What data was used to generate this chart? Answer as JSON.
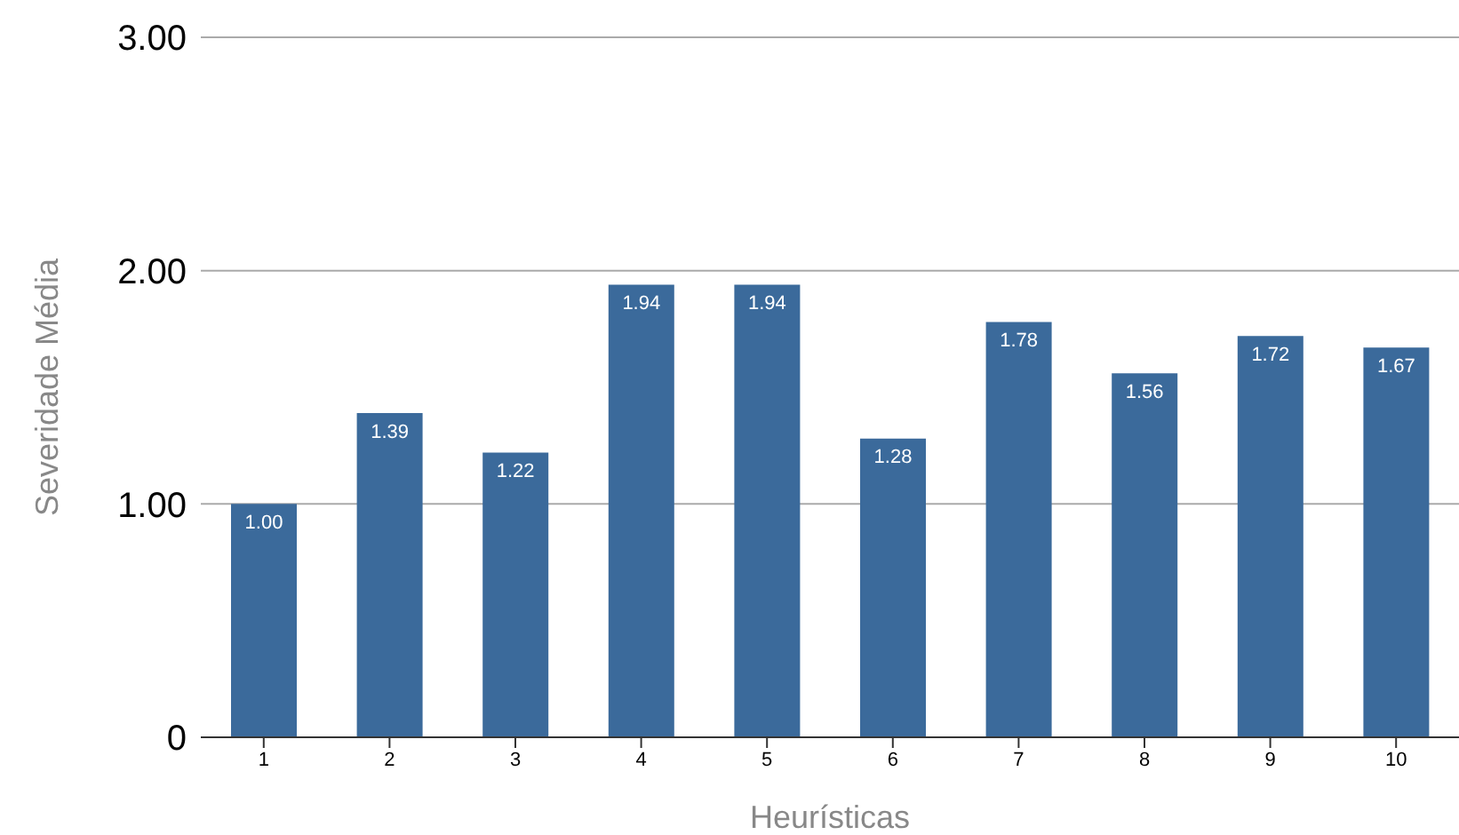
{
  "chart_data": {
    "type": "bar",
    "xlabel": "Heurísticas",
    "ylabel": "Severidade Média",
    "categories": [
      "1",
      "2",
      "3",
      "4",
      "5",
      "6",
      "7",
      "8",
      "9",
      "10"
    ],
    "values": [
      1.0,
      1.39,
      1.22,
      1.94,
      1.94,
      1.28,
      1.78,
      1.56,
      1.72,
      1.67
    ],
    "value_labels": [
      "1.00",
      "1.39",
      "1.22",
      "1.94",
      "1.94",
      "1.28",
      "1.78",
      "1.56",
      "1.72",
      "1.67"
    ],
    "color": "#3b6a9b",
    "ylim": [
      0,
      3
    ],
    "yticks": [
      0,
      {
        "value": 1,
        "label": "1.00"
      },
      {
        "value": 2,
        "label": "2.00"
      },
      {
        "value": 3,
        "label": "3.00"
      }
    ],
    "grid": "y",
    "legend": false
  }
}
